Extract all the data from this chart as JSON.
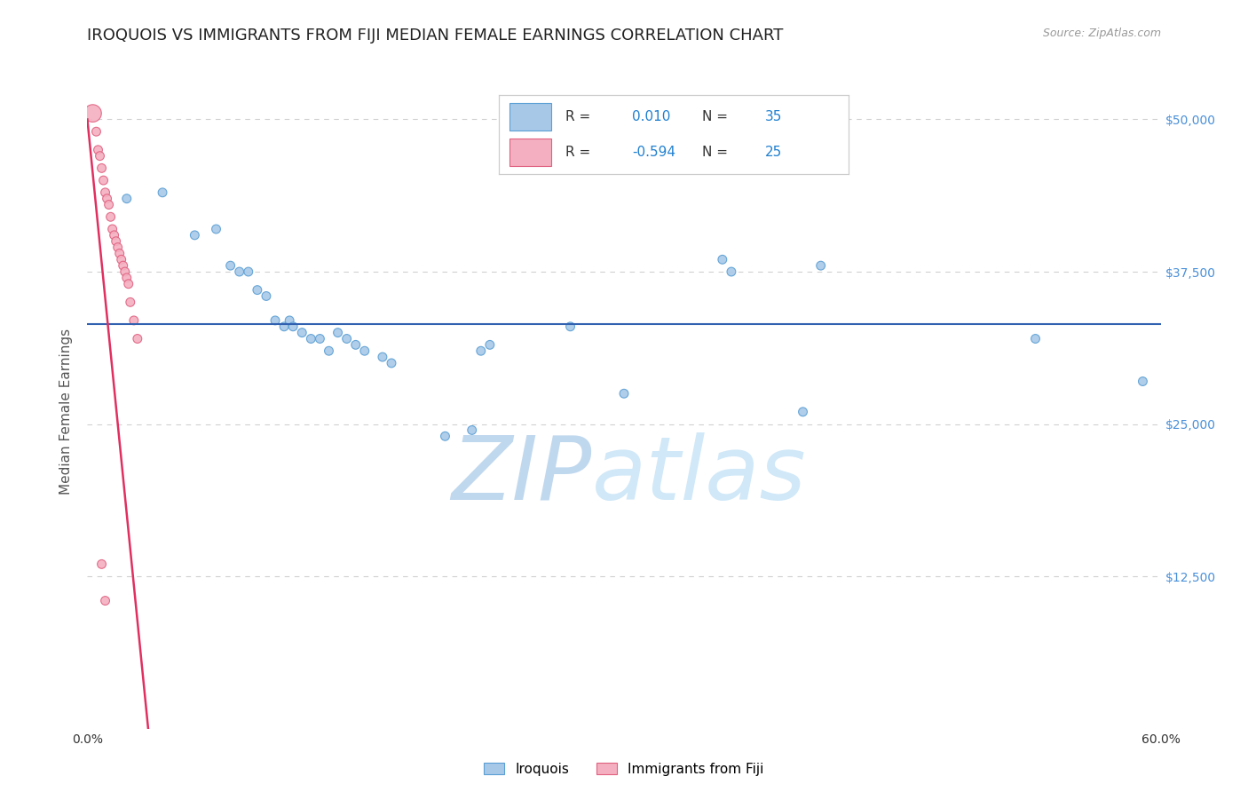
{
  "title": "IROQUOIS VS IMMIGRANTS FROM FIJI MEDIAN FEMALE EARNINGS CORRELATION CHART",
  "source": "Source: ZipAtlas.com",
  "ylabel": "Median Female Earnings",
  "xlim": [
    0.0,
    0.6
  ],
  "ylim": [
    0,
    52000
  ],
  "yticks": [
    0,
    12500,
    25000,
    37500,
    50000
  ],
  "ytick_labels": [
    "",
    "$12,500",
    "$25,000",
    "$37,500",
    "$50,000"
  ],
  "xticks": [
    0.0,
    0.1,
    0.2,
    0.3,
    0.4,
    0.5,
    0.6
  ],
  "xtick_labels": [
    "0.0%",
    "",
    "",
    "",
    "",
    "",
    "60.0%"
  ],
  "blue_R": "0.010",
  "blue_N": "35",
  "pink_R": "-0.594",
  "pink_N": "25",
  "blue_hline_y": 33200,
  "watermark_zip": "ZIP",
  "watermark_atlas": "atlas",
  "watermark_color": "#c8dff0",
  "background_color": "#ffffff",
  "iroquois_points": [
    [
      0.022,
      43500
    ],
    [
      0.042,
      44000
    ],
    [
      0.06,
      40500
    ],
    [
      0.072,
      41000
    ],
    [
      0.08,
      38000
    ],
    [
      0.085,
      37500
    ],
    [
      0.09,
      37500
    ],
    [
      0.095,
      36000
    ],
    [
      0.1,
      35500
    ],
    [
      0.105,
      33500
    ],
    [
      0.11,
      33000
    ],
    [
      0.113,
      33500
    ],
    [
      0.115,
      33000
    ],
    [
      0.12,
      32500
    ],
    [
      0.125,
      32000
    ],
    [
      0.13,
      32000
    ],
    [
      0.135,
      31000
    ],
    [
      0.14,
      32500
    ],
    [
      0.145,
      32000
    ],
    [
      0.15,
      31500
    ],
    [
      0.155,
      31000
    ],
    [
      0.165,
      30500
    ],
    [
      0.17,
      30000
    ],
    [
      0.2,
      24000
    ],
    [
      0.215,
      24500
    ],
    [
      0.22,
      31000
    ],
    [
      0.225,
      31500
    ],
    [
      0.27,
      33000
    ],
    [
      0.3,
      27500
    ],
    [
      0.355,
      38500
    ],
    [
      0.36,
      37500
    ],
    [
      0.4,
      26000
    ],
    [
      0.41,
      38000
    ],
    [
      0.53,
      32000
    ],
    [
      0.59,
      28500
    ]
  ],
  "iroquois_sizes": [
    50,
    50,
    50,
    50,
    50,
    50,
    50,
    50,
    50,
    50,
    50,
    50,
    50,
    50,
    50,
    50,
    50,
    50,
    50,
    50,
    50,
    50,
    50,
    50,
    50,
    50,
    50,
    50,
    50,
    50,
    50,
    50,
    50,
    50,
    50
  ],
  "fiji_points": [
    [
      0.003,
      50500
    ],
    [
      0.005,
      49000
    ],
    [
      0.006,
      47500
    ],
    [
      0.007,
      47000
    ],
    [
      0.008,
      46000
    ],
    [
      0.009,
      45000
    ],
    [
      0.01,
      44000
    ],
    [
      0.011,
      43500
    ],
    [
      0.012,
      43000
    ],
    [
      0.013,
      42000
    ],
    [
      0.014,
      41000
    ],
    [
      0.015,
      40500
    ],
    [
      0.016,
      40000
    ],
    [
      0.017,
      39500
    ],
    [
      0.018,
      39000
    ],
    [
      0.019,
      38500
    ],
    [
      0.02,
      38000
    ],
    [
      0.021,
      37500
    ],
    [
      0.022,
      37000
    ],
    [
      0.023,
      36500
    ],
    [
      0.024,
      35000
    ],
    [
      0.026,
      33500
    ],
    [
      0.028,
      32000
    ],
    [
      0.008,
      13500
    ],
    [
      0.01,
      10500
    ]
  ],
  "fiji_sizes": [
    200,
    50,
    50,
    50,
    50,
    50,
    50,
    50,
    50,
    50,
    50,
    50,
    50,
    50,
    50,
    50,
    50,
    50,
    50,
    50,
    50,
    50,
    50,
    50,
    50
  ],
  "blue_color": "#a8c8e8",
  "blue_edge_color": "#5a9fd4",
  "pink_color": "#f4b0c0",
  "pink_edge_color": "#e06080",
  "trend_blue_color": "#3060b0",
  "trend_pink_color": "#e03060",
  "trend_pink_dashed_color": "#e8a0b0",
  "title_color": "#222222",
  "axis_label_color": "#555555",
  "tick_label_color_right": "#4a90d9",
  "grid_color": "#d0d0d0"
}
